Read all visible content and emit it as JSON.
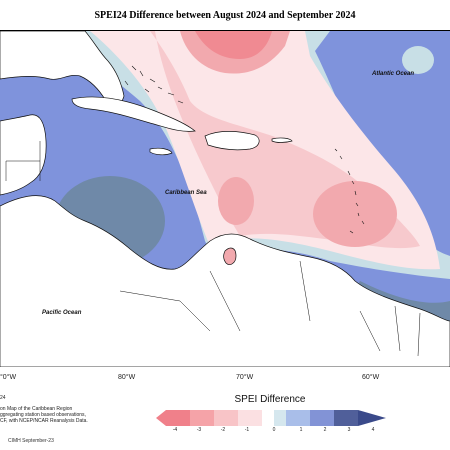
{
  "title": "SPEI24 Difference between August 2024 and September 2024",
  "map_labels": {
    "atlantic": "Atlantic Ocean",
    "caribbean": "Caribbean Sea",
    "pacific": "Pacific Ocean"
  },
  "longitude_labels": [
    "°0°W",
    "80°W",
    "70°W",
    "60°W"
  ],
  "footnote": {
    "line0": "24",
    "line1": "on Map of the Caribbean Region",
    "line2": "ggregating station based observations,",
    "line3": "CF, with NCEP/NCAR Reanalysis Data."
  },
  "legend": {
    "title": "SPEI Difference",
    "ticks": [
      "-4",
      "-3",
      "-2",
      "-1",
      "0",
      "1",
      "2",
      "3",
      "4"
    ],
    "colors": [
      "#f0808a",
      "#f5a3a8",
      "#f8c4c7",
      "#fbe0e2",
      "#ffffff",
      "#d5e7ee",
      "#a9bee9",
      "#8293d6",
      "#505f9a",
      "#3a4a8a"
    ]
  },
  "credit": "CIMH September-23",
  "palette": {
    "deep_blue": "#7f93dc",
    "slate": "#6f89a8",
    "pale_blue": "#c8dfe6",
    "pale_pink": "#fce6e8",
    "pink": "#f7c9cd",
    "rose": "#f2a9ae",
    "red": "#f08a92",
    "land": "#ffffff"
  }
}
